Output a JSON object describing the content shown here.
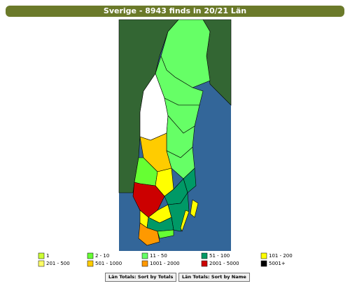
{
  "header": {
    "title": "Sverige - 8943 finds in 20/21 Län"
  },
  "legend": [
    {
      "label": "1",
      "color": "#ccff33"
    },
    {
      "label": "2 - 10",
      "color": "#66ff33"
    },
    {
      "label": "11 - 50",
      "color": "#66ff66"
    },
    {
      "label": "51 - 100",
      "color": "#009966"
    },
    {
      "label": "101 - 200",
      "color": "#ffff00"
    },
    {
      "label": "201 - 500",
      "color": "#ffff66"
    },
    {
      "label": "501 - 1000",
      "color": "#ffcc00"
    },
    {
      "label": "1001 - 2000",
      "color": "#ff9900"
    },
    {
      "label": "2001 - 5000",
      "color": "#cc0000"
    },
    {
      "label": "5001+",
      "color": "#000000"
    }
  ],
  "buttons": [
    "Län Totals: Sort by Totals",
    "Län Totals: Sort by Name"
  ]
}
